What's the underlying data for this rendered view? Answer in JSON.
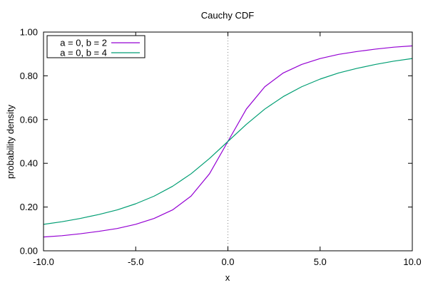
{
  "chart_data": {
    "type": "line",
    "title": "Cauchy CDF",
    "xlabel": "x",
    "ylabel": "probability density",
    "xlim": [
      -10,
      10
    ],
    "ylim": [
      0,
      1
    ],
    "x_ticks": [
      "-10.0",
      "-5.0",
      "0.0",
      "5.0",
      "10.0"
    ],
    "y_ticks": [
      "0.00",
      "0.20",
      "0.40",
      "0.60",
      "0.80",
      "1.00"
    ],
    "grid": false,
    "legend_position": "top-left",
    "reference_line": {
      "x": 0,
      "style": "dotted",
      "color": "#888888"
    },
    "x": [
      -10,
      -9,
      -8,
      -7,
      -6,
      -5,
      -4,
      -3,
      -2,
      -1,
      0,
      1,
      2,
      3,
      4,
      5,
      6,
      7,
      8,
      9,
      10
    ],
    "series": [
      {
        "name": "a = 0, b = 2",
        "color": "#9400d3",
        "values": [
          0.063,
          0.069,
          0.078,
          0.089,
          0.102,
          0.121,
          0.148,
          0.187,
          0.25,
          0.352,
          0.5,
          0.648,
          0.75,
          0.813,
          0.852,
          0.879,
          0.898,
          0.911,
          0.922,
          0.931,
          0.937
        ]
      },
      {
        "name": "a = 0, b = 4",
        "color": "#009e73",
        "values": [
          0.121,
          0.133,
          0.148,
          0.166,
          0.187,
          0.215,
          0.25,
          0.295,
          0.352,
          0.422,
          0.5,
          0.578,
          0.648,
          0.705,
          0.75,
          0.785,
          0.813,
          0.834,
          0.852,
          0.867,
          0.879
        ]
      }
    ]
  }
}
